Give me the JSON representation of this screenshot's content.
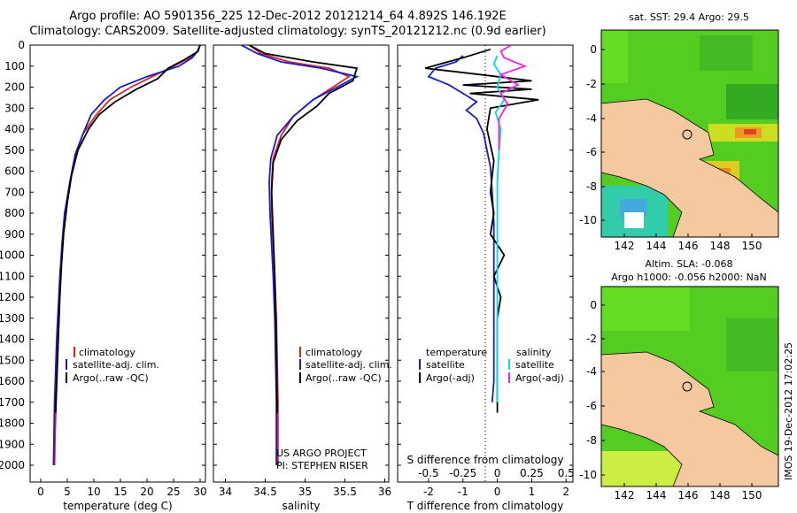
{
  "header": {
    "line1": "Argo profile: AO 5901356_225 12-Dec-2012 20121214_64 4.892S 146.192E",
    "line2": "Climatology: CARS2009. Satellite-adjusted climatology: synTS_20121212.nc (0.9d earlier)"
  },
  "colors": {
    "climatology": "#dd2222",
    "satellite": "#1a1acc",
    "argo": "#000000",
    "sat_salinity": "#00dddd",
    "argo_salinity": "#ee22ee",
    "land": "#f5c9a0"
  },
  "depth_ticks": [
    "0",
    "100",
    "200",
    "300",
    "400",
    "500",
    "600",
    "700",
    "800",
    "900",
    "1000",
    "1100",
    "1200",
    "1300",
    "1400",
    "1500",
    "1600",
    "1700",
    "1800",
    "1900",
    "2000"
  ],
  "panels": {
    "temperature": {
      "xlabel": "temperature (deg C)",
      "xticks": [
        "0",
        "5",
        "10",
        "15",
        "20",
        "25",
        "30"
      ]
    },
    "salinity": {
      "xlabel": "salinity",
      "xticks": [
        "34",
        "34.5",
        "35",
        "35.5",
        "36"
      ]
    },
    "difference": {
      "xlabel_bottom": "T difference from climatology",
      "xlabel_top": "S difference from climatology",
      "xticks_T": [
        "-2",
        "-1",
        "0",
        "1",
        "2"
      ],
      "xticks_S": [
        "-0.5",
        "-0.25",
        "0",
        "0.25",
        "0.5"
      ]
    }
  },
  "legend": {
    "climatology": "climatology",
    "satellite_adj": "satellite-adj. clim.",
    "argo": "Argo(..raw -QC)"
  },
  "diff_legend": {
    "temperature": "temperature",
    "salinity": "salinity",
    "satellite": "satellite",
    "argo_adj": "Argo(-adj)"
  },
  "project": {
    "line1": "US ARGO PROJECT",
    "line2": "PI: STEPHEN RISER"
  },
  "maps": {
    "sst_title": "sat. SST: 29.4 Argo: 29.5",
    "sla_title1": "Altim. SLA: -0.068",
    "sla_title2": "Argo h1000: -0.056 h2000: NaN",
    "lon_ticks": [
      "142",
      "144",
      "146",
      "148",
      "150"
    ],
    "lat_ticks": [
      "0",
      "-2",
      "-4",
      "-6",
      "-8",
      "-10"
    ]
  },
  "footer": {
    "imos": "IMOS 19-Dec-2012 17:02:25"
  },
  "chart_data": [
    {
      "type": "line",
      "title": "",
      "xlabel": "temperature (deg C)",
      "ylabel": "depth",
      "xlim": [
        -2,
        31
      ],
      "ylim": [
        2080,
        0
      ],
      "series": [
        {
          "name": "climatology",
          "x": [
            30,
            29.5,
            28,
            25,
            21,
            17,
            13,
            10.5,
            8,
            6.5,
            5.5,
            4.5,
            4,
            3.7,
            3.5,
            3.3,
            3.1,
            2.9,
            2.7,
            2.6
          ],
          "y": [
            0,
            30,
            60,
            100,
            150,
            200,
            260,
            330,
            420,
            520,
            650,
            800,
            950,
            1100,
            1250,
            1400,
            1550,
            1700,
            1850,
            2000
          ]
        },
        {
          "name": "satellite",
          "x": [
            30,
            29.5,
            28.5,
            26,
            20,
            15,
            12,
            9.5,
            8,
            6.5,
            5.5,
            4.5,
            4,
            3.6,
            3.3,
            3,
            2.8,
            2.6,
            2.5,
            2.4
          ],
          "y": [
            0,
            30,
            60,
            100,
            150,
            200,
            260,
            330,
            420,
            520,
            650,
            800,
            950,
            1100,
            1250,
            1400,
            1550,
            1700,
            1850,
            2000
          ]
        },
        {
          "name": "Argo",
          "x": [
            30,
            29.6,
            27,
            24,
            22,
            18,
            14,
            11,
            9,
            7,
            5.8,
            5,
            4.3,
            3.9,
            3.6,
            3.3,
            3,
            2.8
          ],
          "y": [
            0,
            30,
            70,
            110,
            160,
            210,
            270,
            330,
            400,
            500,
            620,
            750,
            900,
            1050,
            1200,
            1400,
            1600,
            1750
          ]
        }
      ]
    },
    {
      "type": "line",
      "title": "",
      "xlabel": "salinity",
      "ylabel": "depth",
      "xlim": [
        33.85,
        36.05
      ],
      "ylim": [
        2080,
        0
      ],
      "series": [
        {
          "name": "climatology",
          "x": [
            34.3,
            34.45,
            34.8,
            35.3,
            35.55,
            35.35,
            35.1,
            34.85,
            34.7,
            34.6,
            34.58,
            34.58,
            34.6,
            34.62,
            34.64,
            34.65,
            34.66,
            34.66
          ],
          "y": [
            0,
            40,
            80,
            110,
            150,
            200,
            260,
            340,
            430,
            540,
            650,
            800,
            950,
            1100,
            1300,
            1500,
            1700,
            2000
          ]
        },
        {
          "name": "satellite",
          "x": [
            34.2,
            34.4,
            34.7,
            35.2,
            35.65,
            35.4,
            35.1,
            34.85,
            34.65,
            34.57,
            34.55,
            34.56,
            34.58,
            34.6,
            34.62,
            34.63,
            34.64,
            34.64
          ],
          "y": [
            0,
            40,
            80,
            110,
            150,
            200,
            260,
            340,
            430,
            540,
            650,
            800,
            950,
            1100,
            1300,
            1500,
            1700,
            2000
          ]
        },
        {
          "name": "Argo",
          "x": [
            34.3,
            34.5,
            35.1,
            35.65,
            35.6,
            35.3,
            35.15,
            34.9,
            34.7,
            34.6,
            34.58,
            34.6,
            34.62,
            34.64,
            34.65
          ],
          "y": [
            0,
            40,
            80,
            110,
            170,
            230,
            290,
            360,
            450,
            560,
            700,
            900,
            1100,
            1400,
            1750
          ]
        }
      ]
    },
    {
      "type": "line",
      "title": "",
      "xlabel": "T difference from climatology",
      "ylabel": "depth",
      "xlim": [
        -2.9,
        2.2
      ],
      "ylim": [
        2080,
        0
      ],
      "series": [
        {
          "name": "temperature satellite",
          "x": [
            -1.0,
            -1.2,
            -1.8,
            -2.0,
            -1.4,
            -1.0,
            -0.6,
            -0.9,
            -0.6,
            -0.4,
            -0.3,
            -0.2,
            -0.15,
            -0.1,
            -0.1,
            -0.1,
            -0.1,
            -0.1,
            -0.15
          ],
          "y": [
            50,
            80,
            110,
            150,
            190,
            230,
            270,
            310,
            350,
            420,
            500,
            580,
            700,
            850,
            1000,
            1200,
            1400,
            1600,
            1700
          ]
        },
        {
          "name": "temperature Argo(-adj)",
          "x": [
            -0.2,
            -1.0,
            -2.1,
            -0.5,
            1.0,
            -1.0,
            1.0,
            -0.8,
            1.2,
            -0.2,
            -0.3,
            -0.1,
            -0.2,
            -0.1,
            -0.2,
            0.2,
            -0.1,
            0.1,
            0.0,
            0.0,
            0.0
          ],
          "y": [
            20,
            60,
            110,
            140,
            170,
            190,
            210,
            230,
            260,
            300,
            400,
            550,
            700,
            800,
            900,
            1000,
            1100,
            1200,
            1300,
            1500,
            1750
          ]
        },
        {
          "name": "salinity satellite",
          "x": [
            0.0,
            -0.1,
            0.1,
            0.0,
            0.2,
            -0.05,
            0.1,
            0.05,
            0.0,
            0.0,
            0.0,
            0.0
          ],
          "y": [
            50,
            90,
            140,
            200,
            260,
            320,
            400,
            500,
            650,
            900,
            1300,
            1700
          ]
        },
        {
          "name": "salinity Argo(-adj)",
          "x": [
            0.4,
            0.1,
            0.2,
            0.8,
            0.1,
            0.6,
            0.1,
            0.3,
            0.05,
            0.05
          ],
          "y": [
            0,
            30,
            60,
            100,
            140,
            190,
            230,
            280,
            350,
            500
          ]
        }
      ]
    }
  ]
}
